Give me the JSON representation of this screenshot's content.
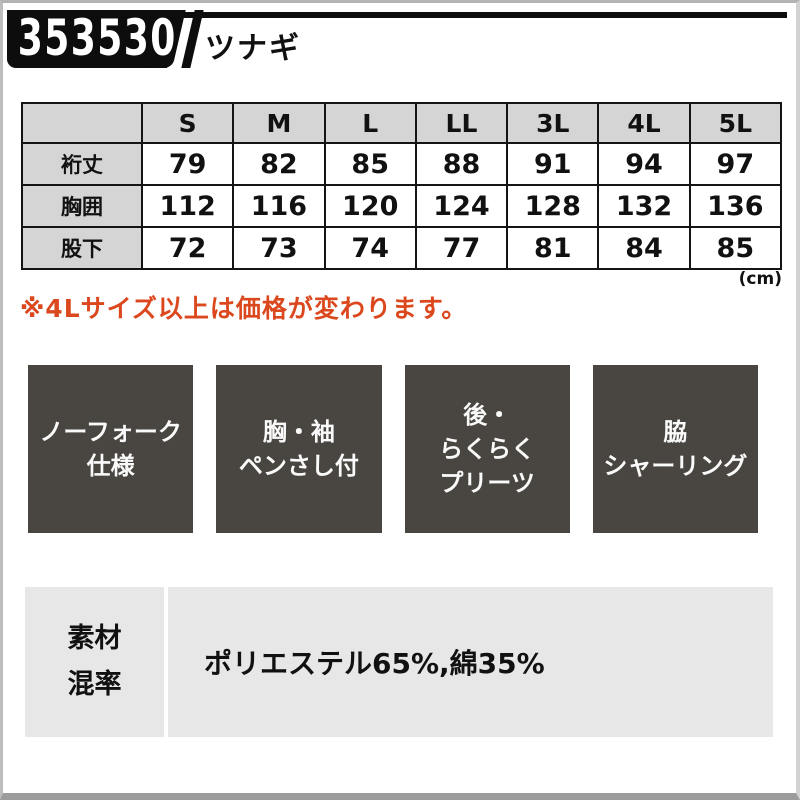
{
  "header": {
    "product_code": "353530",
    "product_name": "ツナギ"
  },
  "size_table": {
    "columns": [
      "S",
      "M",
      "L",
      "LL",
      "3L",
      "4L",
      "5L"
    ],
    "rows": [
      {
        "label": "裄丈",
        "values": [
          "79",
          "82",
          "85",
          "88",
          "91",
          "94",
          "97"
        ]
      },
      {
        "label": "胸囲",
        "values": [
          "112",
          "116",
          "120",
          "124",
          "128",
          "132",
          "136"
        ]
      },
      {
        "label": "股下",
        "values": [
          "72",
          "73",
          "74",
          "77",
          "81",
          "84",
          "85"
        ]
      }
    ],
    "unit_note": "(cm)"
  },
  "price_note": "※4Lサイズ以上は価格が変わります。",
  "features": [
    {
      "lines": [
        "ノーフォーク",
        "仕様"
      ]
    },
    {
      "lines": [
        "胸・袖",
        "ペンさし付"
      ]
    },
    {
      "lines": [
        "後・",
        "らくらく",
        "プリーツ"
      ]
    },
    {
      "lines": [
        "脇",
        "シャーリング"
      ]
    }
  ],
  "material": {
    "label_lines": [
      "素材",
      "混率"
    ],
    "value": "ポリエステル65%,綿35%"
  },
  "colors": {
    "accent_red": "#dc481e",
    "badge_black": "#0d0d0d",
    "feature_box_gray": "#494641",
    "table_header_gray": "#d5d5d5",
    "material_gray": "#e7e7e7"
  }
}
